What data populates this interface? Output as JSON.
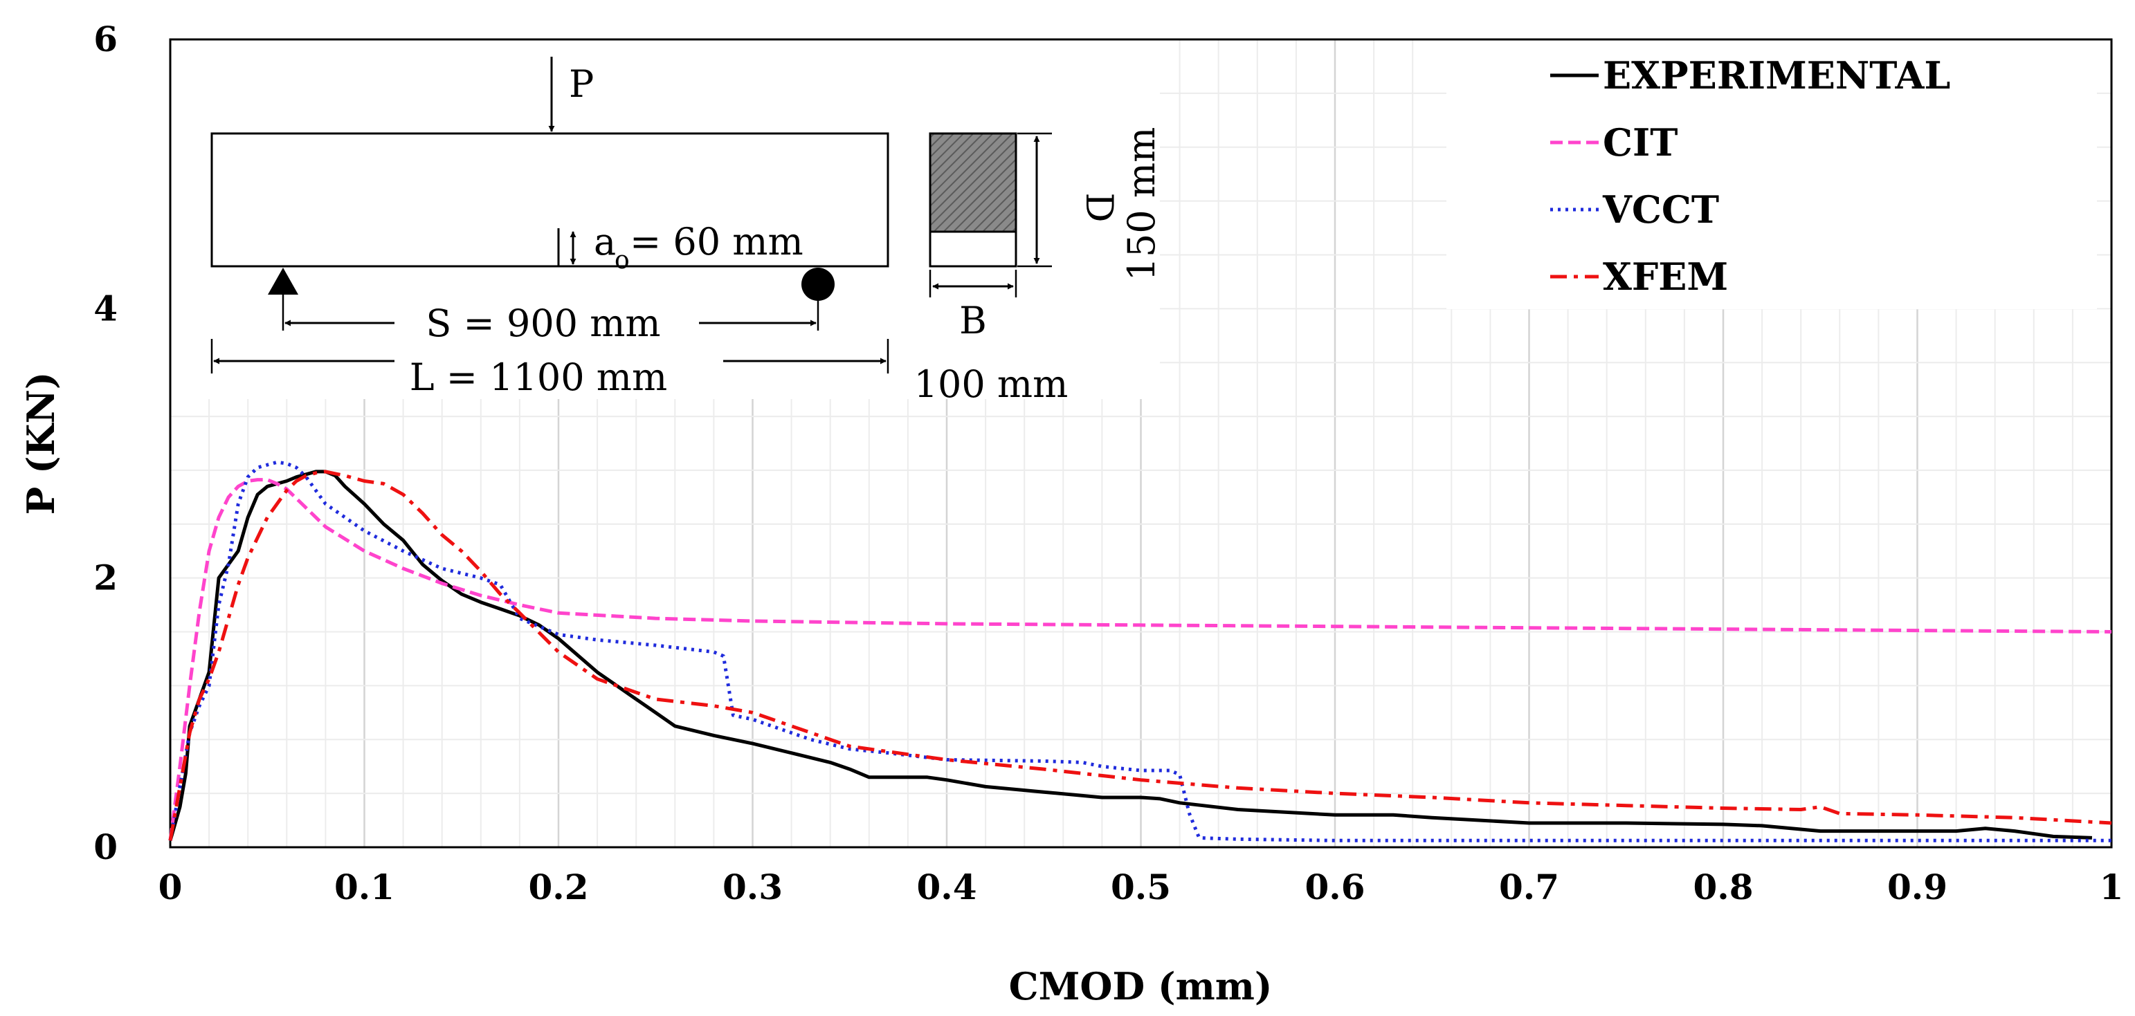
{
  "chart_data": {
    "type": "line",
    "title": "",
    "xlabel": "CMOD (mm)",
    "ylabel": "P (KN)",
    "xlim": [
      0,
      1
    ],
    "ylim": [
      0,
      6
    ],
    "grid": true,
    "legend_position": "top-right",
    "x_ticks": [
      "0",
      "0.1",
      "0.2",
      "0.3",
      "0.4",
      "0.5",
      "0.6",
      "0.7",
      "0.8",
      "0.9",
      "1"
    ],
    "y_ticks": [
      "0",
      "2",
      "4",
      "6"
    ],
    "series": [
      {
        "name": "EXPERIMENTAL",
        "color": "#000000",
        "style": "solid",
        "x": [
          0,
          0.005,
          0.008,
          0.01,
          0.015,
          0.02,
          0.025,
          0.03,
          0.035,
          0.04,
          0.045,
          0.05,
          0.055,
          0.06,
          0.065,
          0.07,
          0.075,
          0.08,
          0.085,
          0.09,
          0.1,
          0.11,
          0.12,
          0.13,
          0.14,
          0.15,
          0.16,
          0.17,
          0.18,
          0.19,
          0.2,
          0.22,
          0.24,
          0.25,
          0.26,
          0.28,
          0.3,
          0.32,
          0.34,
          0.35,
          0.36,
          0.38,
          0.39,
          0.4,
          0.42,
          0.45,
          0.48,
          0.5,
          0.51,
          0.52,
          0.55,
          0.6,
          0.63,
          0.65,
          0.7,
          0.75,
          0.8,
          0.82,
          0.85,
          0.9,
          0.92,
          0.935,
          0.95,
          0.97,
          0.99
        ],
        "y": [
          0.05,
          0.3,
          0.55,
          0.9,
          1.1,
          1.3,
          2.0,
          2.1,
          2.2,
          2.45,
          2.62,
          2.68,
          2.7,
          2.72,
          2.75,
          2.77,
          2.79,
          2.79,
          2.76,
          2.68,
          2.55,
          2.4,
          2.28,
          2.1,
          1.98,
          1.88,
          1.82,
          1.77,
          1.72,
          1.65,
          1.55,
          1.3,
          1.1,
          1.0,
          0.9,
          0.83,
          0.77,
          0.7,
          0.63,
          0.58,
          0.52,
          0.52,
          0.52,
          0.5,
          0.45,
          0.41,
          0.37,
          0.37,
          0.36,
          0.33,
          0.28,
          0.24,
          0.24,
          0.22,
          0.18,
          0.18,
          0.17,
          0.16,
          0.12,
          0.12,
          0.12,
          0.14,
          0.12,
          0.08,
          0.07
        ]
      },
      {
        "name": "CIT",
        "color": "#ff44cc",
        "style": "dashed",
        "x": [
          0,
          0.005,
          0.01,
          0.015,
          0.02,
          0.025,
          0.03,
          0.035,
          0.04,
          0.045,
          0.05,
          0.055,
          0.06,
          0.07,
          0.08,
          0.1,
          0.12,
          0.14,
          0.16,
          0.18,
          0.2,
          0.25,
          0.3,
          0.4,
          0.5,
          0.6,
          0.7,
          0.8,
          0.9,
          1.0
        ],
        "y": [
          0.05,
          0.6,
          1.2,
          1.75,
          2.2,
          2.45,
          2.6,
          2.68,
          2.72,
          2.73,
          2.73,
          2.7,
          2.66,
          2.52,
          2.38,
          2.2,
          2.07,
          1.96,
          1.87,
          1.8,
          1.74,
          1.7,
          1.68,
          1.66,
          1.65,
          1.64,
          1.63,
          1.62,
          1.61,
          1.6
        ]
      },
      {
        "name": "VCCT",
        "color": "#1f2bdc",
        "style": "dotted",
        "x": [
          0,
          0.005,
          0.01,
          0.015,
          0.02,
          0.025,
          0.03,
          0.035,
          0.04,
          0.045,
          0.05,
          0.055,
          0.06,
          0.065,
          0.07,
          0.08,
          0.1,
          0.12,
          0.14,
          0.16,
          0.17,
          0.18,
          0.2,
          0.22,
          0.25,
          0.28,
          0.285,
          0.29,
          0.3,
          0.33,
          0.35,
          0.37,
          0.4,
          0.45,
          0.47,
          0.48,
          0.5,
          0.515,
          0.52,
          0.525,
          0.53,
          0.55,
          0.6,
          0.7,
          0.8,
          0.9,
          1.0
        ],
        "y": [
          0.05,
          0.45,
          0.85,
          1.05,
          1.2,
          1.8,
          2.1,
          2.55,
          2.75,
          2.82,
          2.84,
          2.86,
          2.85,
          2.82,
          2.75,
          2.55,
          2.35,
          2.2,
          2.07,
          2.0,
          1.95,
          1.7,
          1.58,
          1.54,
          1.5,
          1.45,
          1.42,
          0.98,
          0.95,
          0.8,
          0.73,
          0.7,
          0.65,
          0.64,
          0.63,
          0.6,
          0.57,
          0.57,
          0.54,
          0.25,
          0.07,
          0.06,
          0.05,
          0.05,
          0.05,
          0.05,
          0.05
        ]
      },
      {
        "name": "XFEM",
        "color": "#ee1111",
        "style": "dashdot",
        "x": [
          0,
          0.005,
          0.01,
          0.015,
          0.02,
          0.025,
          0.03,
          0.035,
          0.04,
          0.045,
          0.05,
          0.055,
          0.06,
          0.065,
          0.07,
          0.075,
          0.08,
          0.09,
          0.1,
          0.11,
          0.12,
          0.13,
          0.14,
          0.15,
          0.16,
          0.17,
          0.18,
          0.2,
          0.22,
          0.25,
          0.28,
          0.3,
          0.33,
          0.35,
          0.4,
          0.45,
          0.5,
          0.55,
          0.6,
          0.65,
          0.7,
          0.75,
          0.8,
          0.84,
          0.85,
          0.86,
          0.9,
          0.95,
          1.0
        ],
        "y": [
          0.05,
          0.45,
          0.85,
          1.1,
          1.25,
          1.45,
          1.7,
          1.95,
          2.15,
          2.3,
          2.45,
          2.55,
          2.65,
          2.72,
          2.76,
          2.78,
          2.79,
          2.76,
          2.72,
          2.7,
          2.62,
          2.48,
          2.32,
          2.2,
          2.05,
          1.88,
          1.74,
          1.45,
          1.25,
          1.1,
          1.05,
          1.0,
          0.85,
          0.75,
          0.65,
          0.58,
          0.5,
          0.44,
          0.4,
          0.37,
          0.33,
          0.31,
          0.29,
          0.28,
          0.3,
          0.25,
          0.24,
          0.22,
          0.18
        ]
      }
    ],
    "annotations": {
      "load_label": "P",
      "notch_label": "a",
      "notch_sub": "o",
      "notch_value": "= 60 mm",
      "span_label": "S = 900 mm",
      "length_label": "L = 1100 mm",
      "depth_label": "D",
      "depth_value": "150 mm",
      "breadth_label": "B",
      "breadth_value": "100 mm"
    }
  }
}
